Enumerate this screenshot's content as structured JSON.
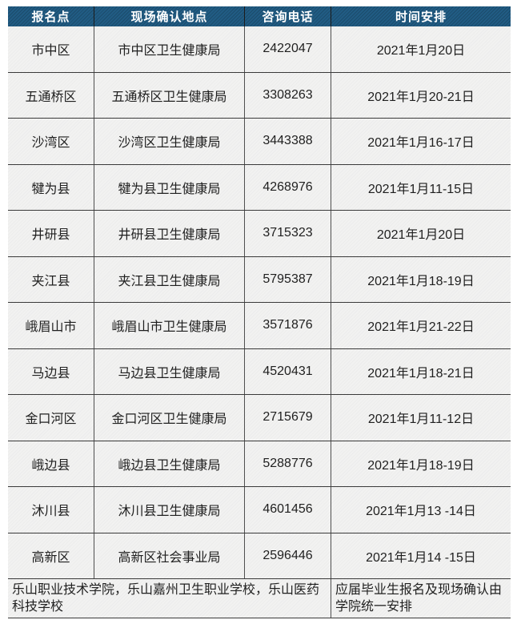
{
  "colors": {
    "header_bg": "#215c84",
    "header_text": "#ffffff",
    "body_bg": "#f2f2f1",
    "text": "#1f1f1f",
    "border_dark": "#3a3a3a",
    "border_mid": "#4f4f4f"
  },
  "table": {
    "columns": [
      {
        "label": "报名点"
      },
      {
        "label": "现场确认地点"
      },
      {
        "label": "咨询电话"
      },
      {
        "label": "时间安排"
      }
    ],
    "rows": [
      {
        "site": "市中区",
        "location": "市中区卫生健康局",
        "phone": "2422047",
        "schedule": "2021年1月20日"
      },
      {
        "site": "五通桥区",
        "location": "五通桥区卫生健康局",
        "phone": "3308263",
        "schedule": "2021年1月20-21日"
      },
      {
        "site": "沙湾区",
        "location": "沙湾区卫生健康局",
        "phone": "3443388",
        "schedule": "2021年1月16-17日"
      },
      {
        "site": "犍为县",
        "location": "犍为县卫生健康局",
        "phone": "4268976",
        "schedule": "2021年1月11-15日"
      },
      {
        "site": "井研县",
        "location": "井研县卫生健康局",
        "phone": "3715323",
        "schedule": "2021年1月20日"
      },
      {
        "site": "夹江县",
        "location": "夹江县卫生健康局",
        "phone": "5795387",
        "schedule": "2021年1月18-19日"
      },
      {
        "site": "峨眉山市",
        "location": "峨眉山市卫生健康局",
        "phone": "3571876",
        "schedule": "2021年1月21-22日"
      },
      {
        "site": "马边县",
        "location": "马边县卫生健康局",
        "phone": "4520431",
        "schedule": "2021年1月18-21日"
      },
      {
        "site": "金口河区",
        "location": "金口河区卫生健康局",
        "phone": "2715679",
        "schedule": "2021年1月11-12日"
      },
      {
        "site": "峨边县",
        "location": "峨边县卫生健康局",
        "phone": "5288776",
        "schedule": "2021年1月18-19日"
      },
      {
        "site": "沐川县",
        "location": "沐川县卫生健康局",
        "phone": "4601456",
        "schedule": "2021年1月13 -14日"
      },
      {
        "site": "高新区",
        "location": "高新区社会事业局",
        "phone": "2596446",
        "schedule": "2021年1月14 -15日"
      }
    ],
    "footer": {
      "left": "乐山职业技术学院，乐山嘉州卫生职业学校，乐山医药科技学校",
      "right": "应届毕业生报名及现场确认由学院统一安排"
    }
  },
  "chart_data": {
    "type": "table",
    "title": "",
    "columns": [
      "报名点",
      "现场确认地点",
      "咨询电话",
      "时间安排"
    ],
    "rows": [
      [
        "市中区",
        "市中区卫生健康局",
        "2422047",
        "2021年1月20日"
      ],
      [
        "五通桥区",
        "五通桥区卫生健康局",
        "3308263",
        "2021年1月20-21日"
      ],
      [
        "沙湾区",
        "沙湾区卫生健康局",
        "3443388",
        "2021年1月16-17日"
      ],
      [
        "犍为县",
        "犍为县卫生健康局",
        "4268976",
        "2021年1月11-15日"
      ],
      [
        "井研县",
        "井研县卫生健康局",
        "3715323",
        "2021年1月20日"
      ],
      [
        "夹江县",
        "夹江县卫生健康局",
        "5795387",
        "2021年1月18-19日"
      ],
      [
        "峨眉山市",
        "峨眉山市卫生健康局",
        "3571876",
        "2021年1月21-22日"
      ],
      [
        "马边县",
        "马边县卫生健康局",
        "4520431",
        "2021年1月18-21日"
      ],
      [
        "金口河区",
        "金口河区卫生健康局",
        "2715679",
        "2021年1月11-12日"
      ],
      [
        "峨边县",
        "峨边县卫生健康局",
        "5288776",
        "2021年1月18-19日"
      ],
      [
        "沐川县",
        "沐川县卫生健康局",
        "4601456",
        "2021年1月13 -14日"
      ],
      [
        "高新区",
        "高新区社会事业局",
        "2596446",
        "2021年1月14 -15日"
      ]
    ],
    "footer_row": [
      "乐山职业技术学院，乐山嘉州卫生职业学校，乐山医药科技学校",
      "应届毕业生报名及现场确认由学院统一安排"
    ]
  }
}
